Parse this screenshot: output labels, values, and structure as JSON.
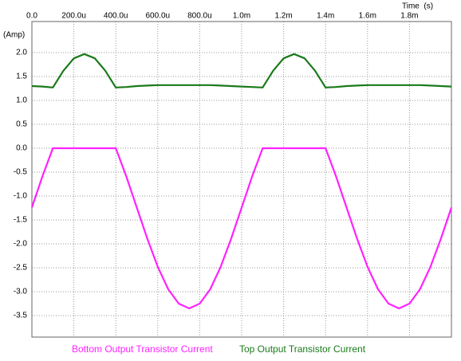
{
  "chart_data": {
    "type": "line",
    "x_label": "Time  (s)",
    "y_label": "(Amp)",
    "x": [
      0,
      5e-05,
      0.0001,
      0.00015,
      0.0002,
      0.00025,
      0.0003,
      0.00035,
      0.0004,
      0.00045,
      0.0005,
      0.00055,
      0.0006,
      0.00065,
      0.0007,
      0.00075,
      0.0008,
      0.00085,
      0.0009,
      0.00095,
      0.001,
      0.00105,
      0.0011,
      0.00115,
      0.0012,
      0.00125,
      0.0013,
      0.00135,
      0.0014,
      0.00145,
      0.0015,
      0.00155,
      0.0016,
      0.00165,
      0.0017,
      0.00175,
      0.0018,
      0.00185,
      0.0019,
      0.00195,
      0.002
    ],
    "series": [
      {
        "name": "Bottom Output Transistor Current",
        "color": "#ff22ff",
        "values": [
          -1.24,
          -0.59,
          0,
          0,
          0,
          0,
          0,
          0,
          0,
          -0.59,
          -1.24,
          -1.89,
          -2.48,
          -2.95,
          -3.25,
          -3.35,
          -3.25,
          -2.95,
          -2.48,
          -1.89,
          -1.24,
          -0.59,
          0,
          0,
          0,
          0,
          0,
          0,
          0,
          -0.59,
          -1.24,
          -1.89,
          -2.48,
          -2.95,
          -3.25,
          -3.35,
          -3.25,
          -2.95,
          -2.48,
          -1.89,
          -1.24
        ]
      },
      {
        "name": "Top Output Transistor Current",
        "color": "#1a7a1a",
        "values": [
          1.3,
          1.29,
          1.27,
          1.62,
          1.88,
          1.97,
          1.88,
          1.62,
          1.27,
          1.28,
          1.3,
          1.31,
          1.32,
          1.32,
          1.32,
          1.32,
          1.32,
          1.32,
          1.31,
          1.3,
          1.29,
          1.28,
          1.27,
          1.62,
          1.88,
          1.97,
          1.88,
          1.62,
          1.27,
          1.28,
          1.3,
          1.31,
          1.32,
          1.32,
          1.32,
          1.32,
          1.32,
          1.32,
          1.31,
          1.3,
          1.29
        ]
      }
    ],
    "xlim": [
      0,
      0.002
    ],
    "ylim": [
      -3.95,
      2.65
    ],
    "xticks": [
      {
        "value": 0,
        "label": "0.0"
      },
      {
        "value": 0.0002,
        "label": "200.0u"
      },
      {
        "value": 0.0004,
        "label": "400.0u"
      },
      {
        "value": 0.0006,
        "label": "600.0u"
      },
      {
        "value": 0.0008,
        "label": "800.0u"
      },
      {
        "value": 0.001,
        "label": "1.0m"
      },
      {
        "value": 0.0012,
        "label": "1.2m"
      },
      {
        "value": 0.0014,
        "label": "1.4m"
      },
      {
        "value": 0.0016,
        "label": "1.6m"
      },
      {
        "value": 0.0018,
        "label": "1.8m"
      }
    ],
    "yticks": [
      {
        "value": 2,
        "label": "2.0"
      },
      1.5,
      {
        "value": 1,
        "label": "1.0"
      },
      0.5,
      {
        "value": 0,
        "label": "0.0"
      },
      -0.5,
      {
        "value": -1,
        "label": "-1.0"
      },
      -1.5,
      {
        "value": -2,
        "label": "-2.0"
      },
      -2.5,
      {
        "value": -3,
        "label": "-3.0"
      },
      -3.5
    ],
    "grid": true
  }
}
